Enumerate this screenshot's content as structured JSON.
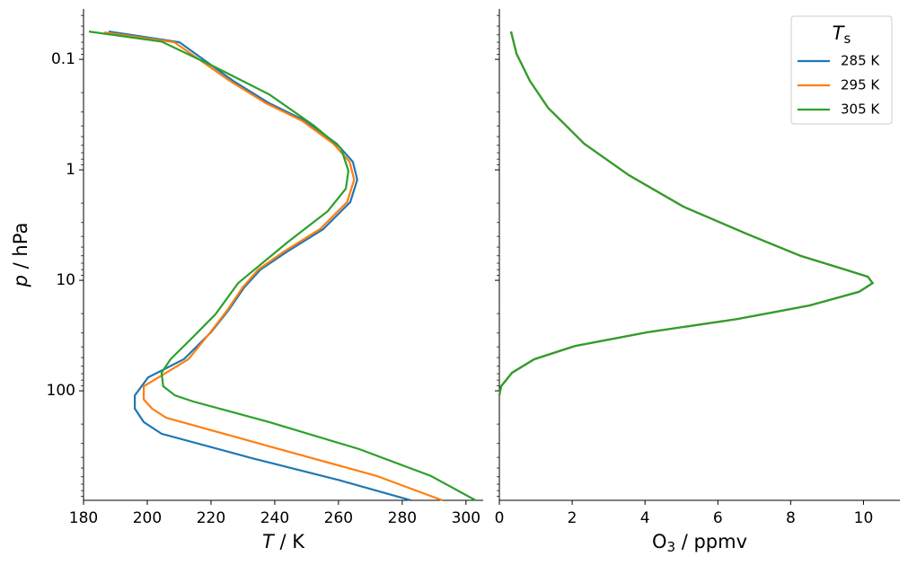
{
  "chart_data": [
    {
      "type": "line",
      "log_y": true,
      "y_inverted": true,
      "xlabel": {
        "symbol": "T",
        "rest": " / K"
      },
      "ylabel": {
        "symbol": "p",
        "rest": " / hPa"
      },
      "xlim": [
        180,
        305.4
      ],
      "xticks": [
        180,
        200,
        220,
        240,
        260,
        280,
        300
      ],
      "ylim": [
        980,
        0.035
      ],
      "yticks": [
        0.1,
        1,
        10,
        100
      ],
      "yminorticks": [
        0.04,
        0.05,
        0.06,
        0.07,
        0.08,
        0.09,
        0.2,
        0.3,
        0.4,
        0.5,
        0.6,
        0.7,
        0.8,
        0.9,
        2,
        3,
        4,
        5,
        6,
        7,
        8,
        9,
        20,
        30,
        40,
        50,
        60,
        70,
        80,
        90,
        200,
        300,
        400,
        500,
        600,
        700,
        800,
        900
      ],
      "series": [
        {
          "color": "#1f77b4",
          "x": [
            187.9,
            210.1,
            227,
            238.3,
            249.6,
            259.4,
            264.5,
            265.9,
            263.7,
            255.2,
            243.9,
            235.5,
            230.4,
            225.6,
            220,
            211.5,
            200.3,
            196.1,
            196.1,
            198.9,
            204.5,
            232.7,
            260.8,
            282.8
          ],
          "y": [
            0.056,
            0.07,
            0.157,
            0.25,
            0.36,
            0.58,
            0.845,
            1.23,
            1.96,
            3.44,
            5.5,
            8,
            11.6,
            18.5,
            29.5,
            51.8,
            75.5,
            110,
            145,
            192,
            245,
            406,
            650,
            981
          ]
        },
        {
          "color": "#ff7f0e",
          "x": [
            186.5,
            208.5,
            226,
            237.3,
            248.6,
            258.4,
            263.5,
            264.9,
            262.7,
            254.2,
            242.9,
            234.8,
            229.9,
            225.2,
            219.8,
            212.9,
            198.9,
            198.9,
            201.5,
            205.9,
            238.3,
            272,
            292.7
          ],
          "y": [
            0.057,
            0.07,
            0.157,
            0.25,
            0.36,
            0.58,
            0.845,
            1.23,
            1.96,
            3.44,
            5.5,
            8,
            11.6,
            18.5,
            29.5,
            51.8,
            91,
            120,
            145,
            175,
            318,
            590,
            981
          ]
        },
        {
          "color": "#2ca02c",
          "x": [
            181.7,
            204.5,
            221.4,
            238.3,
            252.4,
            260.8,
            263.1,
            262.3,
            256.6,
            243.9,
            228.5,
            221.4,
            214.4,
            207.3,
            204.5,
            205,
            208.7,
            214.4,
            238.3,
            266.5,
            289,
            303.1
          ],
          "y": [
            0.056,
            0.069,
            0.118,
            0.208,
            0.4,
            0.64,
            1.02,
            1.48,
            2.37,
            4.55,
            10.6,
            20.3,
            32.5,
            51.8,
            68.6,
            91,
            110,
            125,
            192,
            337,
            590,
            981
          ]
        }
      ]
    },
    {
      "type": "line",
      "log_y": true,
      "y_inverted": true,
      "xlabel": {
        "base": "O",
        "subscript": "3",
        "rest": " / ppmv"
      },
      "xlim": [
        0,
        11
      ],
      "xticks": [
        0,
        2,
        4,
        6,
        8,
        10
      ],
      "ylim": [
        980,
        0.035
      ],
      "legend_title": {
        "symbol": "T",
        "subscript": "s"
      },
      "legend": "upper right",
      "y": [
        0.056,
        0.089,
        0.157,
        0.275,
        0.58,
        1.12,
        2.15,
        3.78,
        6.0,
        8.0,
        9.28,
        10.6,
        12.7,
        16.9,
        22.4,
        29.5,
        39.3,
        51.8,
        68.6,
        91,
        110
      ],
      "series": [
        {
          "name": "285 K",
          "color": "#1f77b4",
          "x": [
            0.32,
            0.47,
            0.84,
            1.34,
            2.33,
            3.56,
            5.05,
            6.78,
            8.27,
            9.5,
            10.12,
            10.25,
            9.88,
            8.52,
            6.53,
            4.06,
            2.08,
            0.96,
            0.35,
            0.05,
            0
          ]
        },
        {
          "name": "295 K",
          "color": "#ff7f0e",
          "x": [
            0.32,
            0.47,
            0.84,
            1.34,
            2.33,
            3.56,
            5.05,
            6.78,
            8.27,
            9.5,
            10.12,
            10.25,
            9.88,
            8.52,
            6.53,
            4.06,
            2.08,
            0.96,
            0.35,
            0.05,
            0
          ]
        },
        {
          "name": "305 K",
          "color": "#2ca02c",
          "x": [
            0.32,
            0.47,
            0.84,
            1.34,
            2.33,
            3.56,
            5.05,
            6.78,
            8.27,
            9.5,
            10.12,
            10.25,
            9.88,
            8.52,
            6.53,
            4.06,
            2.08,
            0.96,
            0.35,
            0.05,
            0
          ]
        }
      ]
    }
  ]
}
